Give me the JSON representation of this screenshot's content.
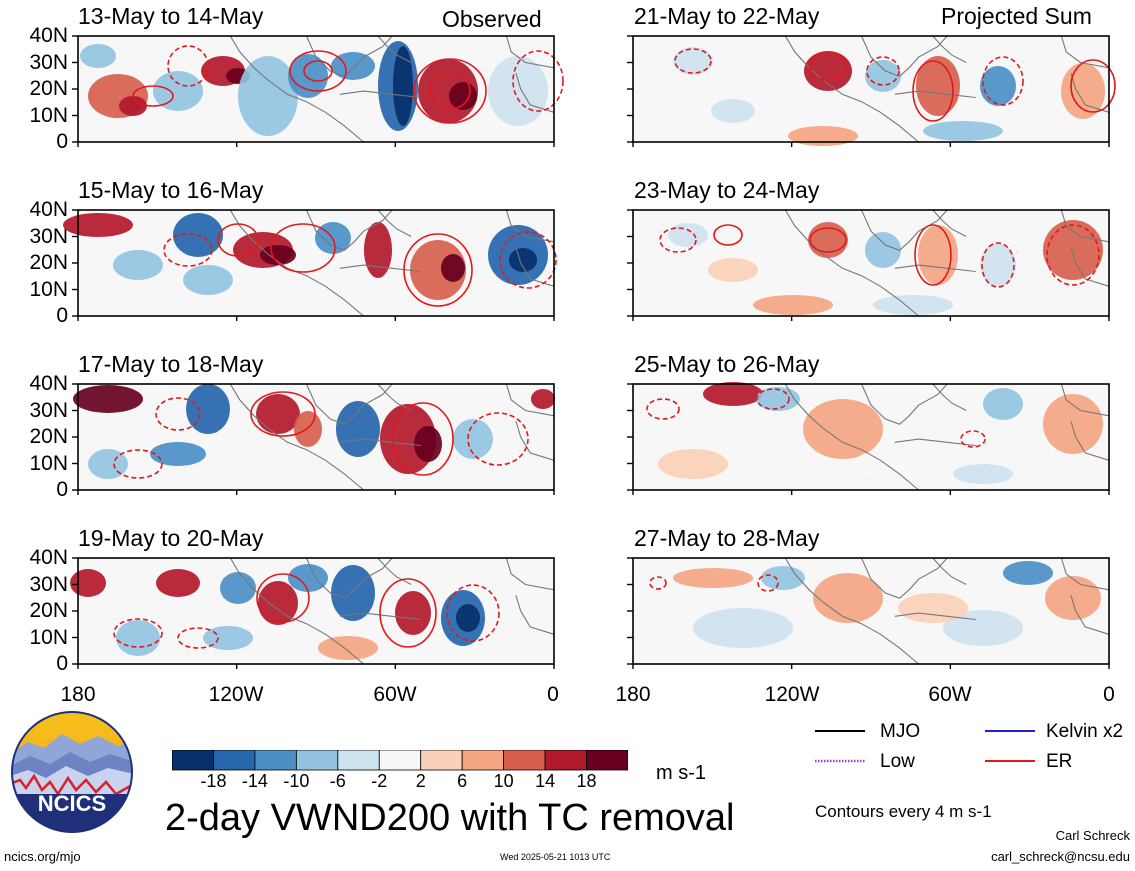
{
  "header": {
    "left_label": "Observed",
    "right_label": "Projected Sum"
  },
  "panels": {
    "left": [
      {
        "title": "13-May to 14-May"
      },
      {
        "title": "15-May to 16-May"
      },
      {
        "title": "17-May to 18-May"
      },
      {
        "title": "19-May to 20-May"
      }
    ],
    "right": [
      {
        "title": "21-May to 22-May"
      },
      {
        "title": "23-May to 24-May"
      },
      {
        "title": "25-May to 26-May"
      },
      {
        "title": "27-May to 28-May"
      }
    ]
  },
  "chart_data": {
    "type": "heatmap",
    "title": "2-day VWND200 with TC removal",
    "variable": "VWND200",
    "units": "m s-1",
    "x_ticks": [
      "180",
      "120W",
      "60W",
      "0"
    ],
    "x_range": [
      -180,
      0
    ],
    "y_ticks": [
      "0",
      "10N",
      "20N",
      "30N",
      "40N"
    ],
    "y_range": [
      0,
      40
    ],
    "colorbar": {
      "levels": [
        "-18",
        "-14",
        "-10",
        "-6",
        "-2",
        "2",
        "6",
        "10",
        "14",
        "18"
      ],
      "colors": [
        "#08306b",
        "#2566ad",
        "#4b8fc6",
        "#93c3df",
        "#cde2ef",
        "#f7f7f7",
        "#fbd0b9",
        "#f4a582",
        "#d6604d",
        "#b2182b",
        "#67001f"
      ]
    },
    "contour_note": "Contours every 4 m s-1",
    "legend": [
      {
        "label": "MJO",
        "color": "#000000",
        "style": "solid"
      },
      {
        "label": "Kelvin x2",
        "color": "#1f1fd6",
        "style": "solid"
      },
      {
        "label": "Low",
        "color": "#9b3fd6",
        "style": "dotted"
      },
      {
        "label": "ER",
        "color": "#e01a1a",
        "style": "solid"
      }
    ]
  },
  "footer": {
    "logo_text": "NCICS",
    "url": "ncics.org/mjo",
    "timestamp": "Wed 2025-05-21 1013 UTC",
    "author": "Carl Schreck",
    "email": "carl_schreck@ncsu.edu"
  }
}
